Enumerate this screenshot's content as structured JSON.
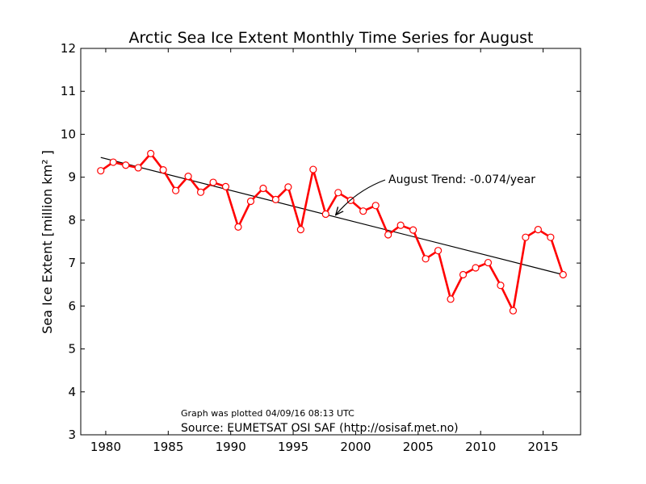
{
  "chart_data": {
    "type": "line",
    "title": "Arctic Sea Ice Extent Monthly Time Series for August",
    "xlabel": "",
    "ylabel": "Sea Ice Extent [million km² ]",
    "xlim": [
      1978,
      2018
    ],
    "ylim": [
      3,
      12
    ],
    "x_ticks": [
      1980,
      1985,
      1990,
      1995,
      2000,
      2005,
      2010,
      2015
    ],
    "y_ticks": [
      3,
      4,
      5,
      6,
      7,
      8,
      9,
      10,
      11,
      12
    ],
    "grid": false,
    "series": [
      {
        "color": "#ff0000",
        "marker": "open-circle",
        "points": [
          [
            1979.6,
            9.15
          ],
          [
            1980.6,
            9.35
          ],
          [
            1981.6,
            9.28
          ],
          [
            1982.6,
            9.22
          ],
          [
            1983.6,
            9.55
          ],
          [
            1984.6,
            9.17
          ],
          [
            1985.6,
            8.69
          ],
          [
            1986.6,
            9.02
          ],
          [
            1987.6,
            8.65
          ],
          [
            1988.6,
            8.88
          ],
          [
            1989.6,
            8.78
          ],
          [
            1990.6,
            7.84
          ],
          [
            1991.6,
            8.44
          ],
          [
            1992.6,
            8.74
          ],
          [
            1993.6,
            8.48
          ],
          [
            1994.6,
            8.77
          ],
          [
            1995.6,
            7.78
          ],
          [
            1996.6,
            9.18
          ],
          [
            1997.6,
            8.14
          ],
          [
            1998.6,
            8.64
          ],
          [
            1999.6,
            8.46
          ],
          [
            2000.6,
            8.21
          ],
          [
            2001.6,
            8.34
          ],
          [
            2002.6,
            7.66
          ],
          [
            2003.6,
            7.88
          ],
          [
            2004.6,
            7.77
          ],
          [
            2005.6,
            7.1
          ],
          [
            2006.6,
            7.29
          ],
          [
            2007.6,
            6.16
          ],
          [
            2008.6,
            6.73
          ],
          [
            2009.6,
            6.89
          ],
          [
            2010.6,
            7.01
          ],
          [
            2011.6,
            6.48
          ],
          [
            2012.6,
            5.89
          ],
          [
            2013.6,
            7.6
          ],
          [
            2014.6,
            7.78
          ],
          [
            2015.6,
            7.6
          ],
          [
            2016.6,
            6.73
          ]
        ]
      }
    ],
    "trend": {
      "color": "#000000",
      "start": [
        1979.6,
        9.46
      ],
      "end": [
        2016.6,
        6.73
      ]
    },
    "annotation": {
      "text": "August Trend: -0.074/year",
      "arrow_target": [
        1998.4,
        8.12
      ]
    },
    "notes": {
      "plotted": "Graph was plotted 04/09/16 08:13 UTC",
      "source": "Source: EUMETSAT OSI SAF (http://osisaf.met.no)"
    }
  }
}
